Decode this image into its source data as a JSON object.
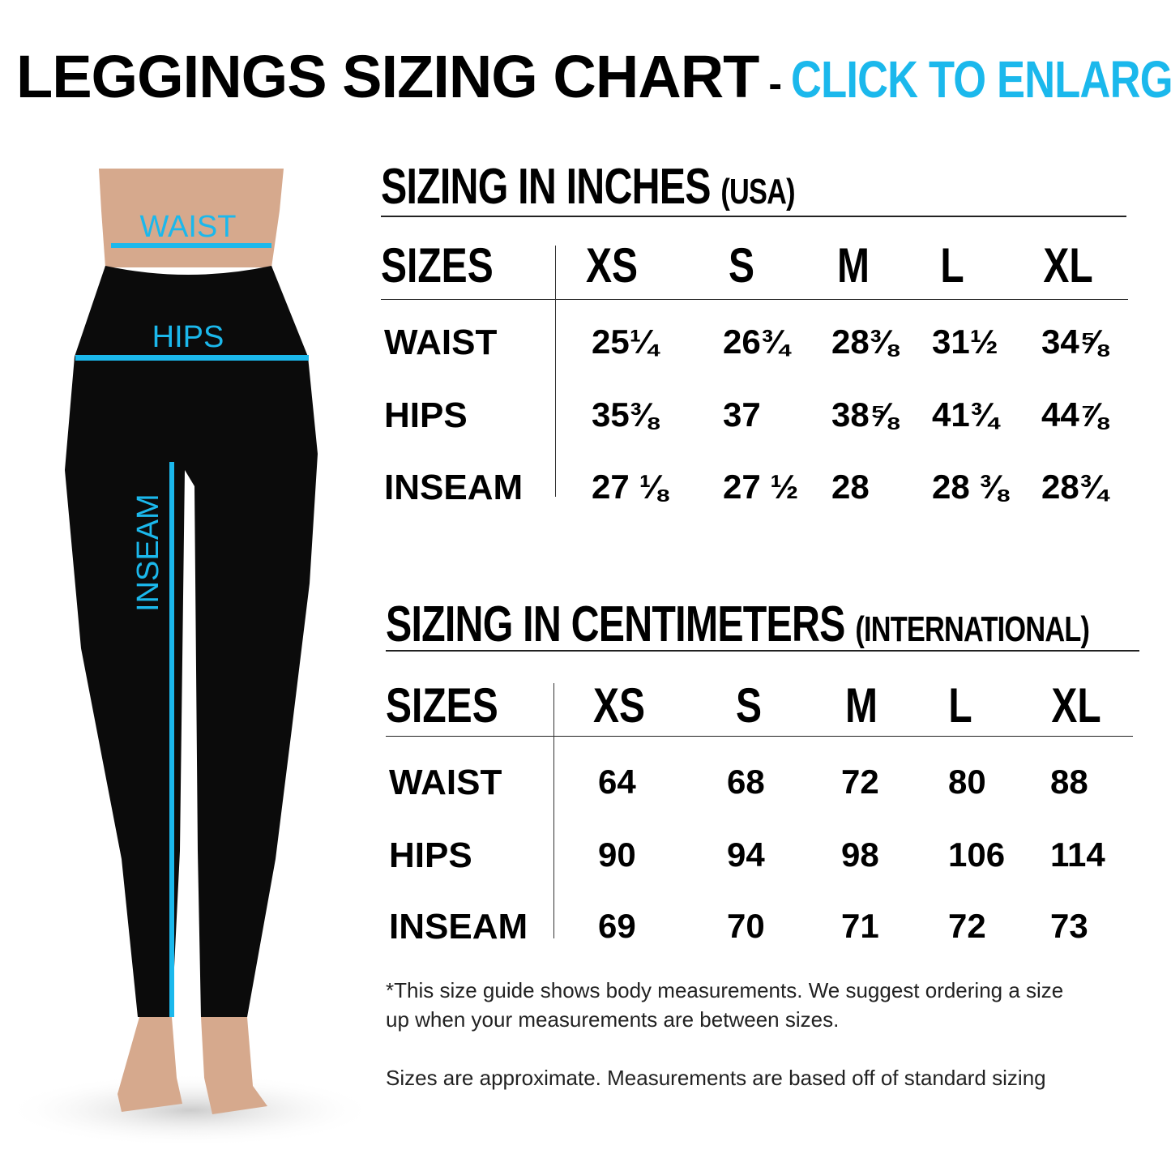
{
  "header": {
    "title": "LEGGINGS SIZING CHART",
    "separator": "-",
    "cta": "CLICK TO ENLARGE"
  },
  "figure": {
    "labels": {
      "waist": "WAIST",
      "hips": "HIPS",
      "inseam": "INSEAM"
    },
    "accent": "#1bb8ec"
  },
  "inches": {
    "heading": "SIZING IN INCHES",
    "heading_sub": "(USA)",
    "columns": [
      "SIZES",
      "XS",
      "S",
      "M",
      "L",
      "XL"
    ],
    "rows": [
      {
        "label": "WAIST",
        "values": [
          "25¼",
          "26¾",
          "28⅜",
          "31½",
          "34⅝"
        ]
      },
      {
        "label": "HIPS",
        "values": [
          "35⅜",
          "37",
          "38⅝",
          "41¾",
          "44⅞"
        ]
      },
      {
        "label": "INSEAM",
        "values": [
          "27 ⅛",
          "27 ½",
          "28",
          "28 ⅜",
          "28¾"
        ]
      }
    ]
  },
  "cm": {
    "heading": "SIZING IN CENTIMETERS",
    "heading_sub": "(INTERNATIONAL)",
    "columns": [
      "SIZES",
      "XS",
      "S",
      "M",
      "L",
      "XL"
    ],
    "rows": [
      {
        "label": "WAIST",
        "values": [
          "64",
          "68",
          "72",
          "80",
          "88"
        ]
      },
      {
        "label": "HIPS",
        "values": [
          "90",
          "94",
          "98",
          "106",
          "114"
        ]
      },
      {
        "label": "INSEAM",
        "values": [
          "69",
          "70",
          "71",
          "72",
          "73"
        ]
      }
    ]
  },
  "notes": {
    "line1": "*This size guide shows body measurements. We suggest ordering a size",
    "line2": "up when your measurements are between sizes.",
    "line3": "Sizes are approximate. Measurements are based off of standard sizing"
  }
}
